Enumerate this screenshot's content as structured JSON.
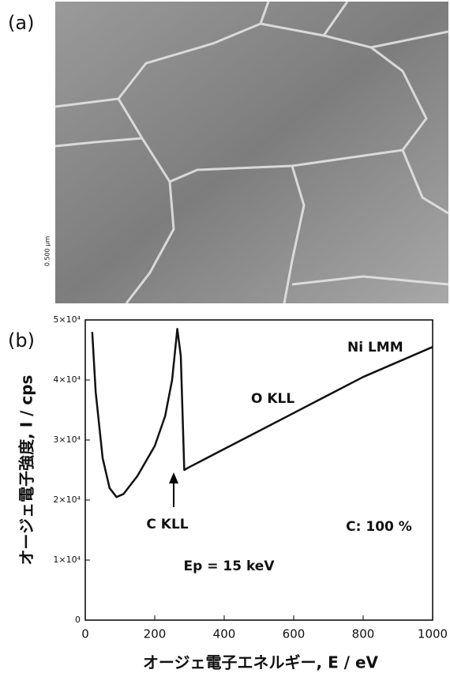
{
  "panel_a": {
    "label": "(a)",
    "scale_bar": "0.500 μm"
  },
  "panel_b": {
    "label": "(b)"
  },
  "chart_data": {
    "type": "line",
    "xlabel": "オージェ電子エネルギー, E / eV",
    "ylabel": "オージェ電子強度, I / cps",
    "annotations": [
      "Ni LMM",
      "O KLL",
      "C KLL",
      "C: 100 %",
      "Ep = 15 keV"
    ],
    "xlim": [
      0,
      1000
    ],
    "xticks": [
      0,
      200,
      400,
      600,
      800,
      1000
    ],
    "ylim": [
      0,
      50000
    ],
    "yticks": [
      0,
      {
        "value": 10000,
        "label": "1×10⁴"
      },
      {
        "value": 20000,
        "label": "2×10⁴"
      },
      {
        "value": 30000,
        "label": "3×10⁴"
      },
      {
        "value": 40000,
        "label": "4×10⁴"
      },
      {
        "value": 50000,
        "label": "5×10⁴"
      }
    ],
    "series": [
      {
        "color": "#111111",
        "x": [
          20,
          30,
          50,
          70,
          90,
          110,
          150,
          200,
          230,
          250,
          265,
          275,
          285,
          300,
          400,
          500,
          600,
          700,
          800,
          900,
          1000
        ],
        "values": [
          48000,
          38000,
          27000,
          22000,
          20500,
          21000,
          24000,
          29000,
          34000,
          40000,
          48500,
          44000,
          25000,
          25500,
          28500,
          31500,
          34500,
          37500,
          40500,
          43000,
          45500
        ]
      }
    ]
  }
}
